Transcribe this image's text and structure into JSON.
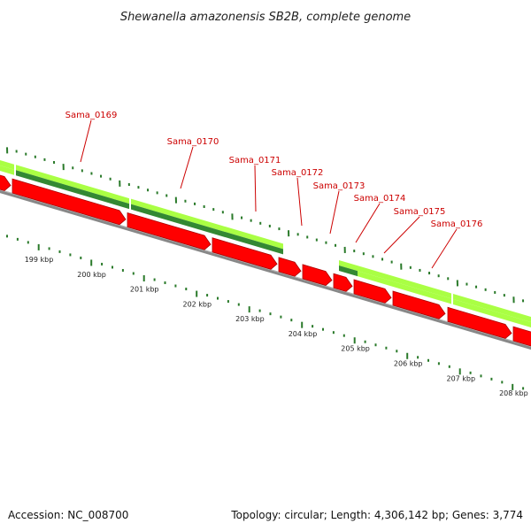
{
  "title": "Shewanella amazonensis SB2B, complete genome",
  "footer": {
    "accession": "Accession: NC_008700",
    "stats": "Topology: circular; Length: 4,306,142 bp; Genes: 3,774"
  },
  "colors": {
    "gene_label": "#cc0000",
    "gene_arrow": "#ff0000",
    "gene_arrow_shadow": "#aa0000",
    "feature_light": "#aaff44",
    "feature_dark": "#338833",
    "backbone": "#888888",
    "tick": "#2a7a2a",
    "background": "#ffffff"
  },
  "genes": [
    {
      "name": "Sama_0169"
    },
    {
      "name": "Sama_0170"
    },
    {
      "name": "Sama_0171"
    },
    {
      "name": "Sama_0172"
    },
    {
      "name": "Sama_0173"
    },
    {
      "name": "Sama_0174"
    },
    {
      "name": "Sama_0175"
    },
    {
      "name": "Sama_0176"
    }
  ],
  "kbp_labels": [
    "199 kbp",
    "200 kbp",
    "201 kbp",
    "202 kbp",
    "203 kbp",
    "204 kbp",
    "205 kbp",
    "206 kbp",
    "207 kbp",
    "208 kbp"
  ]
}
